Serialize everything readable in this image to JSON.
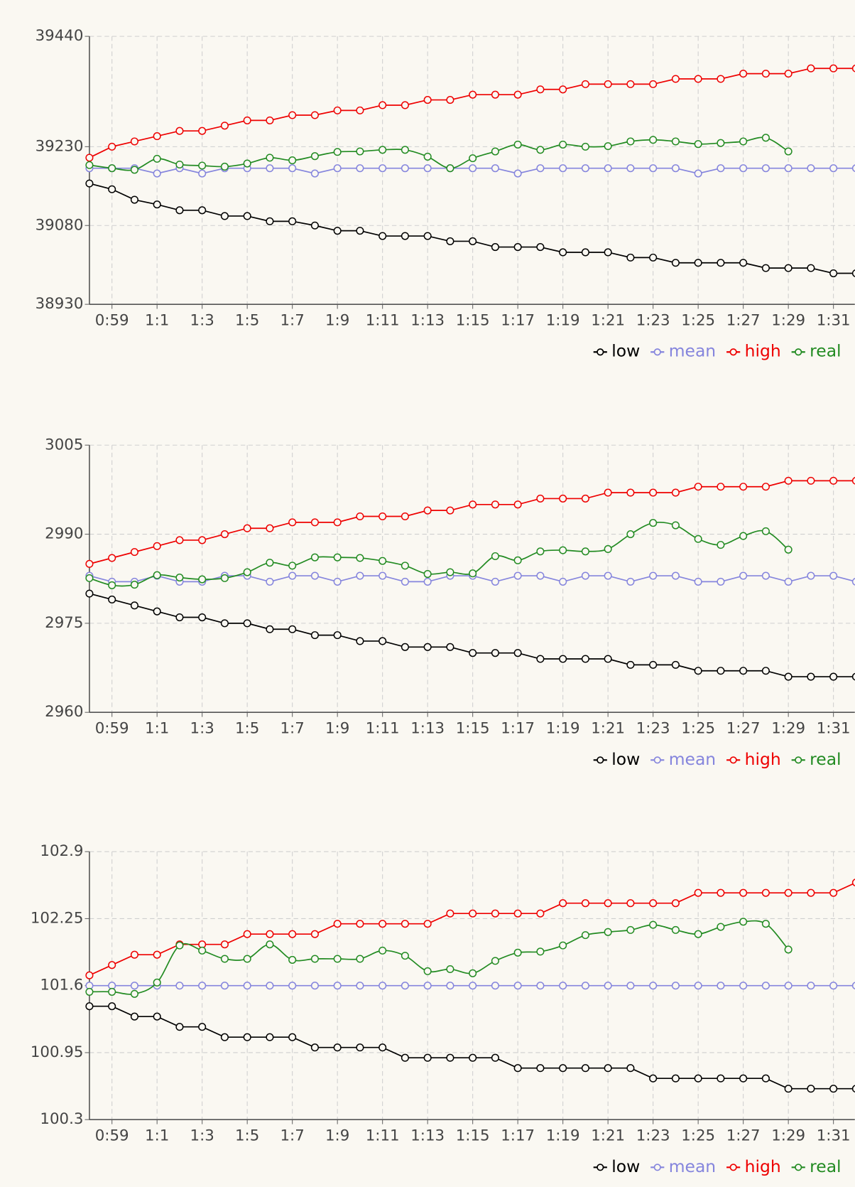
{
  "chart_data": [
    {
      "type": "line",
      "categories": [
        null,
        "0:59",
        null,
        "1:1",
        null,
        "1:3",
        null,
        "1:5",
        null,
        "1:7",
        null,
        "1:9",
        null,
        "1:11",
        null,
        "1:13",
        null,
        "1:15",
        null,
        "1:17",
        null,
        "1:19",
        null,
        "1:21",
        null,
        "1:23",
        null,
        "1:25",
        null,
        "1:27",
        null,
        "1:29",
        null,
        "1:31",
        null
      ],
      "ylim": [
        38930,
        39440
      ],
      "yticks": [
        38930,
        39080,
        39230,
        39440
      ],
      "grid": true,
      "legend": "bottom-right",
      "series": [
        {
          "name": "low",
          "color": "#000000",
          "values": [
            39160,
            39149,
            39129,
            39120,
            39109,
            39109,
            39098,
            39098,
            39088,
            39088,
            39080,
            39070,
            39070,
            39060,
            39060,
            39060,
            39050,
            39050,
            39039,
            39039,
            39039,
            39029,
            39029,
            39029,
            39019,
            39019,
            39009,
            39009,
            39009,
            39009,
            38999,
            38999,
            38999,
            38989,
            38989
          ]
        },
        {
          "name": "mean",
          "color": "#8585dd",
          "values": [
            39189,
            39189,
            39189,
            39179,
            39189,
            39179,
            39189,
            39189,
            39189,
            39189,
            39179,
            39189,
            39189,
            39189,
            39189,
            39189,
            39189,
            39189,
            39189,
            39179,
            39189,
            39189,
            39189,
            39189,
            39189,
            39189,
            39189,
            39179,
            39189,
            39189,
            39189,
            39189,
            39189,
            39189,
            39189
          ]
        },
        {
          "name": "high",
          "color": "#ee0000",
          "values": [
            39209,
            39230,
            39240,
            39250,
            39260,
            39260,
            39270,
            39280,
            39280,
            39290,
            39290,
            39299,
            39299,
            39309,
            39309,
            39319,
            39319,
            39329,
            39329,
            39329,
            39339,
            39339,
            39349,
            39349,
            39349,
            39349,
            39359,
            39359,
            39359,
            39369,
            39369,
            39369,
            39379,
            39379,
            39379
          ]
        },
        {
          "name": "real",
          "color": "#228b22",
          "smooth": true,
          "values": [
            39195,
            39189,
            39186,
            39207,
            39196,
            39194,
            39192,
            39198,
            39209,
            39204,
            39212,
            39220,
            39221,
            39224,
            39224,
            39211,
            39189,
            39208,
            39221,
            39234,
            39224,
            39234,
            39230,
            39231,
            39240,
            39243,
            39240,
            39235,
            39237,
            39240,
            39247,
            39221,
            null,
            null,
            null
          ]
        }
      ]
    },
    {
      "type": "line",
      "categories": [
        null,
        "0:59",
        null,
        "1:1",
        null,
        "1:3",
        null,
        "1:5",
        null,
        "1:7",
        null,
        "1:9",
        null,
        "1:11",
        null,
        "1:13",
        null,
        "1:15",
        null,
        "1:17",
        null,
        "1:19",
        null,
        "1:21",
        null,
        "1:23",
        null,
        "1:25",
        null,
        "1:27",
        null,
        "1:29",
        null,
        "1:31",
        null
      ],
      "ylim": [
        2960,
        3005
      ],
      "yticks": [
        2960,
        2975,
        2990,
        3005
      ],
      "grid": true,
      "legend": "bottom-right",
      "series": [
        {
          "name": "low",
          "color": "#000000",
          "values": [
            2980,
            2979,
            2978,
            2977,
            2976,
            2976,
            2975,
            2975,
            2974,
            2974,
            2973,
            2973,
            2972,
            2972,
            2971,
            2971,
            2971,
            2970,
            2970,
            2970,
            2969,
            2969,
            2969,
            2969,
            2968,
            2968,
            2968,
            2967,
            2967,
            2967,
            2967,
            2966,
            2966,
            2966,
            2966
          ]
        },
        {
          "name": "mean",
          "color": "#8585dd",
          "values": [
            2983,
            2982,
            2982,
            2983,
            2982,
            2982,
            2983,
            2983,
            2982,
            2983,
            2983,
            2982,
            2983,
            2983,
            2982,
            2982,
            2983,
            2983,
            2982,
            2983,
            2983,
            2982,
            2983,
            2983,
            2982,
            2983,
            2983,
            2982,
            2982,
            2983,
            2983,
            2982,
            2983,
            2983,
            2982
          ]
        },
        {
          "name": "high",
          "color": "#ee0000",
          "values": [
            2985,
            2986,
            2987,
            2988,
            2989,
            2989,
            2990,
            2991,
            2991,
            2992,
            2992,
            2992,
            2993,
            2993,
            2993,
            2994,
            2994,
            2995,
            2995,
            2995,
            2996,
            2996,
            2996,
            2997,
            2997,
            2997,
            2997,
            2998,
            2998,
            2998,
            2998,
            2999,
            2999,
            2999,
            2999
          ]
        },
        {
          "name": "real",
          "color": "#228b22",
          "smooth": true,
          "values": [
            2982.6,
            2981.4,
            2981.5,
            2983.1,
            2982.7,
            2982.4,
            2982.6,
            2983.6,
            2985.2,
            2984.7,
            2986.1,
            2986.1,
            2986.0,
            2985.5,
            2984.7,
            2983.3,
            2983.6,
            2983.4,
            2986.3,
            2985.6,
            2987.1,
            2987.3,
            2987.1,
            2987.5,
            2990.0,
            2991.9,
            2991.5,
            2989.2,
            2988.2,
            2989.7,
            2990.5,
            2987.4,
            null,
            null,
            null
          ]
        }
      ]
    },
    {
      "type": "line",
      "categories": [
        null,
        "0:59",
        null,
        "1:1",
        null,
        "1:3",
        null,
        "1:5",
        null,
        "1:7",
        null,
        "1:9",
        null,
        "1:11",
        null,
        "1:13",
        null,
        "1:15",
        null,
        "1:17",
        null,
        "1:19",
        null,
        "1:21",
        null,
        "1:23",
        null,
        "1:25",
        null,
        "1:27",
        null,
        "1:29",
        null,
        "1:31",
        null
      ],
      "ylim": [
        100.3,
        102.9
      ],
      "yticks": [
        100.3,
        100.95,
        101.6,
        102.25,
        102.9
      ],
      "grid": true,
      "legend": "bottom-right",
      "series": [
        {
          "name": "low",
          "color": "#000000",
          "values": [
            101.4,
            101.4,
            101.3,
            101.3,
            101.2,
            101.2,
            101.1,
            101.1,
            101.1,
            101.1,
            101.0,
            101.0,
            101.0,
            101.0,
            100.9,
            100.9,
            100.9,
            100.9,
            100.9,
            100.8,
            100.8,
            100.8,
            100.8,
            100.8,
            100.8,
            100.7,
            100.7,
            100.7,
            100.7,
            100.7,
            100.7,
            100.6,
            100.6,
            100.6,
            100.6
          ]
        },
        {
          "name": "mean",
          "color": "#8585dd",
          "values": [
            101.6,
            101.6,
            101.6,
            101.6,
            101.6,
            101.6,
            101.6,
            101.6,
            101.6,
            101.6,
            101.6,
            101.6,
            101.6,
            101.6,
            101.6,
            101.6,
            101.6,
            101.6,
            101.6,
            101.6,
            101.6,
            101.6,
            101.6,
            101.6,
            101.6,
            101.6,
            101.6,
            101.6,
            101.6,
            101.6,
            101.6,
            101.6,
            101.6,
            101.6,
            101.6
          ]
        },
        {
          "name": "high",
          "color": "#ee0000",
          "values": [
            101.7,
            101.8,
            101.9,
            101.9,
            102.0,
            102.0,
            102.0,
            102.1,
            102.1,
            102.1,
            102.1,
            102.2,
            102.2,
            102.2,
            102.2,
            102.2,
            102.3,
            102.3,
            102.3,
            102.3,
            102.3,
            102.4,
            102.4,
            102.4,
            102.4,
            102.4,
            102.4,
            102.5,
            102.5,
            102.5,
            102.5,
            102.5,
            102.5,
            102.5,
            102.6
          ]
        },
        {
          "name": "real",
          "color": "#228b22",
          "smooth": true,
          "values": [
            101.54,
            101.54,
            101.52,
            101.63,
            101.99,
            101.94,
            101.86,
            101.86,
            102.0,
            101.85,
            101.86,
            101.86,
            101.86,
            101.94,
            101.89,
            101.74,
            101.76,
            101.72,
            101.84,
            101.92,
            101.93,
            101.99,
            102.09,
            102.12,
            102.14,
            102.19,
            102.14,
            102.1,
            102.17,
            102.22,
            102.2,
            101.95,
            null,
            null,
            null
          ]
        }
      ]
    }
  ]
}
